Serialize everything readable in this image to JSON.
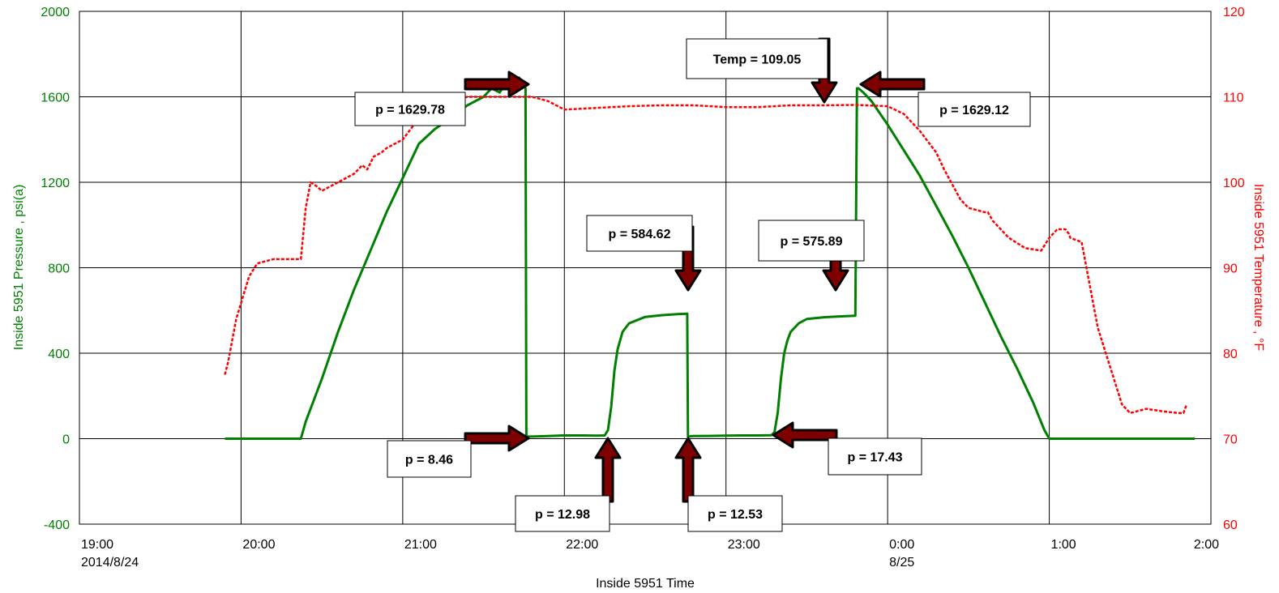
{
  "chart_data": {
    "type": "line",
    "title": "",
    "xlabel": "Inside 5951 Time",
    "ylabel_left": "Inside 5951 Pressure , psi(a)",
    "ylabel_right": "Inside 5951 Temperature , °F",
    "colors": {
      "pressure": "#008000",
      "temperature": "#ff0000",
      "grid": "#000000",
      "arrow": "#7f0000"
    },
    "grid": true,
    "x_ticks": [
      {
        "time": "19:00",
        "date": "2014/8/24",
        "hours": 19
      },
      {
        "time": "20:00",
        "date": "",
        "hours": 20
      },
      {
        "time": "21:00",
        "date": "",
        "hours": 21
      },
      {
        "time": "22:00",
        "date": "",
        "hours": 22
      },
      {
        "time": "23:00",
        "date": "",
        "hours": 23
      },
      {
        "time": "0:00",
        "date": "8/25",
        "hours": 24
      },
      {
        "time": "1:00",
        "date": "",
        "hours": 25
      },
      {
        "time": "2:00",
        "date": "",
        "hours": 26
      }
    ],
    "xlim": [
      19,
      26
    ],
    "ylim_left": [
      -400,
      2000
    ],
    "yticks_left": [
      2000,
      1600,
      1200,
      800,
      400,
      0,
      -400
    ],
    "ylim_right": [
      60,
      120
    ],
    "yticks_right": [
      120,
      110,
      100,
      90,
      80,
      70,
      60
    ],
    "series": [
      {
        "axis": "left",
        "style": "solid",
        "x": [
          19.9,
          20.1,
          20.3,
          20.37,
          20.4,
          20.5,
          20.6,
          20.7,
          20.8,
          20.9,
          21.0,
          21.1,
          21.2,
          21.3,
          21.4,
          21.5,
          21.55,
          21.6,
          21.65,
          21.68,
          21.72,
          21.76,
          21.765,
          21.8,
          21.9,
          22.0,
          22.1,
          22.2,
          22.25,
          22.27,
          22.29,
          22.31,
          22.33,
          22.36,
          22.4,
          22.5,
          22.6,
          22.7,
          22.76,
          22.765,
          22.8,
          22.9,
          23.0,
          23.1,
          23.2,
          23.28,
          23.3,
          23.32,
          23.34,
          23.36,
          23.38,
          23.4,
          23.45,
          23.5,
          23.6,
          23.7,
          23.8,
          23.81,
          23.82,
          23.85,
          23.9,
          24.0,
          24.1,
          24.2,
          24.3,
          24.4,
          24.5,
          24.6,
          24.7,
          24.8,
          24.9,
          24.97,
          25.0,
          25.1,
          25.5,
          25.9
        ],
        "values": [
          0,
          0,
          0,
          0,
          80,
          280,
          500,
          700,
          880,
          1060,
          1220,
          1380,
          1450,
          1500,
          1560,
          1600,
          1640,
          1620,
          1680,
          1640,
          1690,
          1640,
          10,
          10,
          12,
          15,
          15,
          14,
          15,
          40,
          150,
          320,
          420,
          500,
          540,
          570,
          578,
          583,
          585,
          10,
          12,
          13,
          14,
          15,
          15,
          16,
          30,
          120,
          280,
          400,
          460,
          500,
          540,
          560,
          568,
          572,
          575,
          1640,
          1640,
          1620,
          1580,
          1470,
          1350,
          1230,
          1090,
          950,
          800,
          640,
          480,
          330,
          170,
          40,
          0,
          0,
          0,
          0
        ]
      },
      {
        "axis": "right",
        "style": "dashed",
        "x": [
          19.9,
          19.92,
          19.97,
          20.05,
          20.1,
          20.2,
          20.37,
          20.4,
          20.43,
          20.47,
          20.5,
          20.55,
          20.6,
          20.7,
          20.75,
          20.78,
          20.82,
          20.87,
          20.9,
          21.0,
          21.1,
          21.2,
          21.3,
          21.4,
          21.5,
          21.6,
          21.7,
          21.8,
          21.9,
          22.0,
          22.2,
          22.4,
          22.6,
          22.8,
          23.0,
          23.2,
          23.4,
          23.6,
          23.8,
          24.0,
          24.1,
          24.2,
          24.3,
          24.35,
          24.45,
          24.5,
          24.6,
          24.62,
          24.65,
          24.75,
          24.85,
          24.95,
          25.0,
          25.05,
          25.1,
          25.12,
          25.13,
          25.2,
          25.3,
          25.4,
          25.45,
          25.5,
          25.6,
          25.7,
          25.8,
          25.83,
          25.85
        ],
        "values": [
          77.5,
          79,
          84,
          89,
          90.5,
          91,
          91,
          97,
          100,
          99.5,
          99,
          99.5,
          100,
          101,
          102,
          101.5,
          103,
          103.5,
          104,
          105,
          107.5,
          108.5,
          109.5,
          110,
          110,
          110,
          110,
          110,
          109.5,
          108.5,
          108.7,
          108.9,
          109,
          109,
          108.8,
          108.8,
          109,
          109,
          109.05,
          108.9,
          108,
          106,
          103.5,
          101.5,
          98,
          97,
          96.5,
          96.5,
          95.5,
          93.5,
          92.3,
          92,
          93.5,
          94.5,
          94.5,
          94,
          93.5,
          93,
          83,
          77,
          74,
          73,
          73.5,
          73.2,
          73,
          73,
          74
        ]
      }
    ],
    "annotations": [
      {
        "label": "p = 1629.78"
      },
      {
        "label": "p = 8.46"
      },
      {
        "label": "p = 12.98"
      },
      {
        "label": "p = 584.62"
      },
      {
        "label": "p = 12.53"
      },
      {
        "label": "p = 575.89"
      },
      {
        "label": "p = 17.43"
      },
      {
        "label": "Temp = 109.05"
      },
      {
        "label": "p = 1629.12"
      }
    ]
  }
}
